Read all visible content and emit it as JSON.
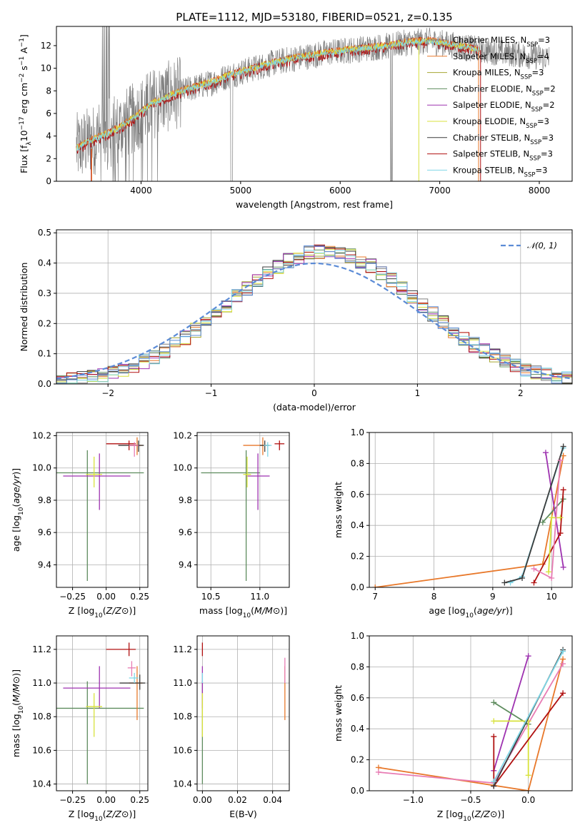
{
  "figure": {
    "title": "PLATE=1112, MJD=53180, FIBERID=0521, z=0.135"
  },
  "colors": {
    "gray": "#808080",
    "orange": "#e8782a",
    "purple": "#9e32b0",
    "yellow": "#d8e23c",
    "darkgray": "#3c3c3c",
    "red": "#b01010",
    "cyan": "#7fd6e6",
    "blue": "#5b8bd6",
    "green": "#5e8c5e",
    "pink": "#e87cb4",
    "olive": "#a6a632"
  },
  "chart_data": [
    {
      "id": "spectrum",
      "type": "line",
      "xlabel": "wavelength [Angstrom, rest frame]",
      "ylabel": "Flux [f_λ10^-17 erg cm^-2 s^-1 A^-1]",
      "xlim": [
        3150,
        8330
      ],
      "ylim": [
        0,
        13.7
      ],
      "xticks": [
        4000,
        5000,
        6000,
        7000,
        8000
      ],
      "yticks": [
        0,
        2,
        4,
        6,
        8,
        10,
        12
      ],
      "grid": false,
      "legend_position": "right",
      "legend": [
        {
          "label": "Chabrier MILES, N",
          "sub": "SSP",
          "suffix": "=3",
          "color": "#808080"
        },
        {
          "label": "Salpeter MILES, N",
          "sub": "SSP",
          "suffix": "=4",
          "color": "#e8782a"
        },
        {
          "label": "Kroupa MILES, N",
          "sub": "SSP",
          "suffix": "=3",
          "color": "#a6a632"
        },
        {
          "label": "Chabrier ELODIE, N",
          "sub": "SSP",
          "suffix": "=2",
          "color": "#5e8c5e"
        },
        {
          "label": "Salpeter ELODIE, N",
          "sub": "SSP",
          "suffix": "=2",
          "color": "#9e32b0"
        },
        {
          "label": "Kroupa ELODIE, N",
          "sub": "SSP",
          "suffix": "=3",
          "color": "#d8e23c"
        },
        {
          "label": "Chabrier STELIB, N",
          "sub": "SSP",
          "suffix": "=3",
          "color": "#3c3c3c"
        },
        {
          "label": "Salpeter STELIB, N",
          "sub": "SSP",
          "suffix": "=3",
          "color": "#b01010"
        },
        {
          "label": "Kroupa STELIB, N",
          "sub": "SSP",
          "suffix": "=3",
          "color": "#7fd6e6"
        }
      ],
      "continuum": {
        "x": [
          3350,
          3500,
          3700,
          3900,
          4100,
          4300,
          4500,
          4700,
          4900,
          5100,
          5300,
          5500,
          5700,
          5900,
          6100,
          6300,
          6500,
          6700,
          6900,
          7100,
          7300,
          7400
        ],
        "y": [
          2.9,
          3.6,
          4.3,
          5.4,
          6.8,
          7.6,
          8.2,
          8.7,
          9.4,
          9.9,
          10.4,
          10.8,
          11.1,
          11.4,
          11.6,
          11.8,
          12.0,
          12.3,
          12.4,
          12.1,
          11.8,
          11.6
        ]
      },
      "data_extent": [
        3350,
        8100
      ]
    },
    {
      "id": "residuals",
      "type": "step",
      "xlabel": "(data-model)/error",
      "ylabel": "Normed distribution",
      "xlim": [
        -2.5,
        2.5
      ],
      "ylim": [
        0,
        0.51
      ],
      "xticks": [
        -2,
        -1,
        0,
        1,
        2
      ],
      "xticklabels": [
        "−2",
        "−1",
        "0",
        "1",
        "2"
      ],
      "yticks": [
        0,
        0.1,
        0.2,
        0.3,
        0.4,
        0.5
      ],
      "yticklabels": [
        "0.0",
        "0.1",
        "0.2",
        "0.3",
        "0.4",
        "0.5"
      ],
      "grid": true,
      "legend_position": "top-right",
      "legend": [
        {
          "label": "𝒩(0, 1)",
          "color": "#5b8bd6"
        }
      ],
      "bins": {
        "start": -2.5,
        "width": 0.1
      }
    },
    {
      "id": "age-vs-z",
      "type": "errorbar",
      "xlabel": "Z [log10(Z/Z⊙)]",
      "ylabel": "age [log10(age/yr)]",
      "xlim": [
        -0.37,
        0.31
      ],
      "ylim": [
        9.26,
        10.22
      ],
      "xticks": [
        -0.25,
        0,
        0.25
      ],
      "xticklabels": [
        "−0.25",
        "0.00",
        "0.25"
      ],
      "yticks": [
        9.4,
        9.6,
        9.8,
        10.0,
        10.2
      ],
      "yticklabels": [
        "9.4",
        "9.6",
        "9.8",
        "10.0",
        "10.2"
      ],
      "grid": true,
      "points": [
        {
          "x": -0.14,
          "y": 9.97,
          "xerr": [
            0.45,
            0.42
          ],
          "yerr": [
            0.67,
            0.14
          ],
          "color": "#5e8c5e"
        },
        {
          "x": -0.05,
          "y": 9.95,
          "xerr": [
            0.27,
            0.23
          ],
          "yerr": [
            0.21,
            0.14
          ],
          "color": "#9e32b0"
        },
        {
          "x": -0.09,
          "y": 9.96,
          "xerr": [
            0.06,
            0.06
          ],
          "yerr": [
            0.08,
            0.11
          ],
          "color": "#d8e23c"
        },
        {
          "x": 0.17,
          "y": 10.15,
          "xerr": [
            0.17,
            0.05
          ],
          "yerr": [
            0.04,
            0.02
          ],
          "color": "#b01010"
        },
        {
          "x": 0.23,
          "y": 10.14,
          "xerr": [
            0.06,
            0.04
          ],
          "yerr": [
            0.06,
            0.05
          ],
          "color": "#e8782a"
        },
        {
          "x": 0.24,
          "y": 10.14,
          "xerr": [
            0.15,
            0.04
          ],
          "yerr": [
            0.04,
            0.03
          ],
          "color": "#3c3c3c"
        },
        {
          "x": 0.21,
          "y": 10.14,
          "xerr": [
            0.04,
            0.03
          ],
          "yerr": [
            0.07,
            0.02
          ],
          "color": "#e87cb4"
        }
      ]
    },
    {
      "id": "age-vs-mass",
      "type": "errorbar",
      "xlabel": "mass [log10(M/M⊙)]",
      "ylabel": "",
      "xlim": [
        10.36,
        11.3
      ],
      "ylim": [
        9.26,
        10.22
      ],
      "xticks": [
        10.5,
        11.0
      ],
      "xticklabels": [
        "10.5",
        "11.0"
      ],
      "yticks": [
        9.4,
        9.6,
        9.8,
        10.0,
        10.2
      ],
      "yticklabels": [
        "9.4",
        "9.6",
        "9.8",
        "10.0",
        "10.2"
      ],
      "grid": true,
      "points": [
        {
          "x": 10.86,
          "y": 9.97,
          "xerr": [
            0.46,
            0.14
          ],
          "yerr": [
            0.67,
            0.14
          ],
          "color": "#5e8c5e"
        },
        {
          "x": 10.98,
          "y": 9.95,
          "xerr": [
            0.12,
            0.12
          ],
          "yerr": [
            0.21,
            0.14
          ],
          "color": "#9e32b0"
        },
        {
          "x": 10.87,
          "y": 9.96,
          "xerr": [
            0.04,
            0.04
          ],
          "yerr": [
            0.08,
            0.11
          ],
          "color": "#d8e23c"
        },
        {
          "x": 11.2,
          "y": 10.15,
          "xerr": [
            0.05,
            0.05
          ],
          "yerr": [
            0.04,
            0.02
          ],
          "color": "#b01010"
        },
        {
          "x": 11.03,
          "y": 10.14,
          "xerr": [
            0.2,
            0.06
          ],
          "yerr": [
            0.06,
            0.05
          ],
          "color": "#e8782a"
        },
        {
          "x": 11.05,
          "y": 10.14,
          "xerr": [
            0.05,
            0.05
          ],
          "yerr": [
            0.04,
            0.03
          ],
          "color": "#3c3c3c"
        },
        {
          "x": 11.08,
          "y": 10.14,
          "xerr": [
            0.04,
            0.04
          ],
          "yerr": [
            0.07,
            0.02
          ],
          "color": "#7fd6e6"
        }
      ]
    },
    {
      "id": "weight-vs-age",
      "type": "line",
      "xlabel": "age [log10(age/yr)]",
      "ylabel": "mass weight",
      "xlim": [
        6.9,
        10.35
      ],
      "ylim": [
        0,
        1.0
      ],
      "xticks": [
        7,
        8,
        9,
        10
      ],
      "yticks": [
        0,
        0.2,
        0.4,
        0.6,
        0.8,
        1.0
      ],
      "yticklabels": [
        "0.0",
        "0.2",
        "0.4",
        "0.6",
        "0.8",
        "1.0"
      ],
      "grid": true,
      "series": [
        {
          "color": "#e8782a",
          "x": [
            7.0,
            9.85,
            10.2
          ],
          "y": [
            0.0,
            0.15,
            0.85
          ]
        },
        {
          "color": "#7fd6e6",
          "x": [
            9.3,
            9.5,
            10.2
          ],
          "y": [
            0.03,
            0.07,
            0.9
          ]
        },
        {
          "color": "#5e8c5e",
          "x": [
            9.85,
            10.2
          ],
          "y": [
            0.42,
            0.57
          ]
        },
        {
          "color": "#9e32b0",
          "x": [
            9.9,
            10.2
          ],
          "y": [
            0.87,
            0.13
          ]
        },
        {
          "color": "#b01010",
          "x": [
            9.7,
            10.15,
            10.2
          ],
          "y": [
            0.03,
            0.35,
            0.63
          ]
        },
        {
          "color": "#d8e23c",
          "x": [
            9.95,
            10.0,
            10.15
          ],
          "y": [
            0.1,
            0.45,
            0.45
          ]
        },
        {
          "color": "#3c3c3c",
          "x": [
            9.2,
            9.5,
            10.2
          ],
          "y": [
            0.03,
            0.06,
            0.91
          ]
        },
        {
          "color": "#e87cb4",
          "x": [
            9.7,
            10.0,
            10.15
          ],
          "y": [
            0.12,
            0.06,
            0.82
          ]
        }
      ]
    },
    {
      "id": "mass-vs-z",
      "type": "errorbar",
      "xlabel": "Z [log10(Z/Z⊙)]",
      "ylabel": "mass [log10(M/M⊙)]",
      "xlim": [
        -0.37,
        0.31
      ],
      "ylim": [
        10.36,
        11.28
      ],
      "xticks": [
        -0.25,
        0,
        0.25
      ],
      "xticklabels": [
        "−0.25",
        "0.00",
        "0.25"
      ],
      "yticks": [
        10.4,
        10.6,
        10.8,
        11.0,
        11.2
      ],
      "yticklabels": [
        "10.4",
        "10.6",
        "10.8",
        "11.0",
        "11.2"
      ],
      "grid": true,
      "points": [
        {
          "x": -0.14,
          "y": 10.85,
          "xerr": [
            0.45,
            0.42
          ],
          "yerr": [
            0.45,
            0.16
          ],
          "color": "#5e8c5e"
        },
        {
          "x": -0.05,
          "y": 10.97,
          "xerr": [
            0.27,
            0.23
          ],
          "yerr": [
            0.12,
            0.13
          ],
          "color": "#9e32b0"
        },
        {
          "x": -0.09,
          "y": 10.86,
          "xerr": [
            0.06,
            0.06
          ],
          "yerr": [
            0.18,
            0.08
          ],
          "color": "#d8e23c"
        },
        {
          "x": 0.17,
          "y": 11.2,
          "xerr": [
            0.17,
            0.05
          ],
          "yerr": [
            0.04,
            0.04
          ],
          "color": "#b01010"
        },
        {
          "x": 0.23,
          "y": 11.0,
          "xerr": [
            0.06,
            0.04
          ],
          "yerr": [
            0.22,
            0.1
          ],
          "color": "#e8782a"
        },
        {
          "x": 0.25,
          "y": 11.0,
          "xerr": [
            0.15,
            0.04
          ],
          "yerr": [
            0.04,
            0.05
          ],
          "color": "#3c3c3c"
        },
        {
          "x": 0.21,
          "y": 11.03,
          "xerr": [
            0.04,
            0.03
          ],
          "yerr": [
            0.03,
            0.03
          ],
          "color": "#7fd6e6"
        },
        {
          "x": 0.19,
          "y": 11.09,
          "xerr": [
            0.03,
            0.03
          ],
          "yerr": [
            0.05,
            0.04
          ],
          "color": "#e87cb4"
        }
      ]
    },
    {
      "id": "mass-vs-ebv",
      "type": "errorbar",
      "xlabel": "E(B-V)",
      "ylabel": "",
      "xlim": [
        -0.003,
        0.0495
      ],
      "ylim": [
        10.36,
        11.28
      ],
      "xticks": [
        0,
        0.02,
        0.04
      ],
      "xticklabels": [
        "0.00",
        "0.02",
        "0.04"
      ],
      "yticks": [
        10.4,
        10.6,
        10.8,
        11.0,
        11.2
      ],
      "yticklabels": [
        "10.4",
        "10.6",
        "10.8",
        "11.0",
        "11.2"
      ],
      "grid": true,
      "points": [
        {
          "x": 0.0,
          "y": 10.85,
          "xerr": [
            0,
            0
          ],
          "yerr": [
            0.45,
            0.16
          ],
          "color": "#5e8c5e"
        },
        {
          "x": 0.0,
          "y": 10.97,
          "xerr": [
            0,
            0
          ],
          "yerr": [
            0.12,
            0.13
          ],
          "color": "#9e32b0"
        },
        {
          "x": 0.0,
          "y": 10.86,
          "xerr": [
            0,
            0
          ],
          "yerr": [
            0.18,
            0.08
          ],
          "color": "#d8e23c"
        },
        {
          "x": 0.0,
          "y": 11.2,
          "xerr": [
            0,
            0
          ],
          "yerr": [
            0.04,
            0.04
          ],
          "color": "#b01010"
        },
        {
          "x": 0.047,
          "y": 11.0,
          "xerr": [
            0,
            0
          ],
          "yerr": [
            0.22,
            0.1
          ],
          "color": "#e8782a"
        },
        {
          "x": 0.047,
          "y": 11.03,
          "xerr": [
            0,
            0
          ],
          "yerr": [
            0.03,
            0.12
          ],
          "color": "#e87cb4"
        },
        {
          "x": 0.0,
          "y": 11.03,
          "xerr": [
            0,
            0
          ],
          "yerr": [
            0.03,
            0.03
          ],
          "color": "#7fd6e6"
        }
      ]
    },
    {
      "id": "weight-vs-z",
      "type": "line",
      "xlabel": "Z [log10(Z/Z⊙)]",
      "ylabel": "mass weight",
      "xlim": [
        -1.38,
        0.38
      ],
      "ylim": [
        0,
        1.0
      ],
      "xticks": [
        -1.0,
        -0.5,
        0.0
      ],
      "xticklabels": [
        "−1.0",
        "−0.5",
        "0.0"
      ],
      "yticks": [
        0,
        0.2,
        0.4,
        0.6,
        0.8,
        1.0
      ],
      "yticklabels": [
        "0.0",
        "0.2",
        "0.4",
        "0.6",
        "0.8",
        "1.0"
      ],
      "grid": true,
      "series": [
        {
          "color": "#e8782a",
          "x": [
            -1.3,
            0.0,
            0.3
          ],
          "y": [
            0.15,
            0.0,
            0.85
          ]
        },
        {
          "color": "#e87cb4",
          "x": [
            -1.3,
            -0.3,
            0.3
          ],
          "y": [
            0.12,
            0.05,
            0.82
          ]
        },
        {
          "color": "#9e32b0",
          "x": [
            -0.3,
            0.0
          ],
          "y": [
            0.13,
            0.87
          ]
        },
        {
          "color": "#5e8c5e",
          "x": [
            -0.3,
            0.0
          ],
          "y": [
            0.57,
            0.43
          ]
        },
        {
          "color": "#d8e23c",
          "x": [
            -0.3,
            0.0,
            0.0
          ],
          "y": [
            0.45,
            0.45,
            0.1
          ]
        },
        {
          "color": "#b01010",
          "x": [
            -0.3,
            -0.3,
            0.3
          ],
          "y": [
            0.35,
            0.03,
            0.63
          ]
        },
        {
          "color": "#3c3c3c",
          "x": [
            -0.3,
            0.3
          ],
          "y": [
            0.03,
            0.91
          ]
        },
        {
          "color": "#7fd6e6",
          "x": [
            -0.3,
            0.3
          ],
          "y": [
            0.06,
            0.9
          ]
        }
      ]
    }
  ]
}
